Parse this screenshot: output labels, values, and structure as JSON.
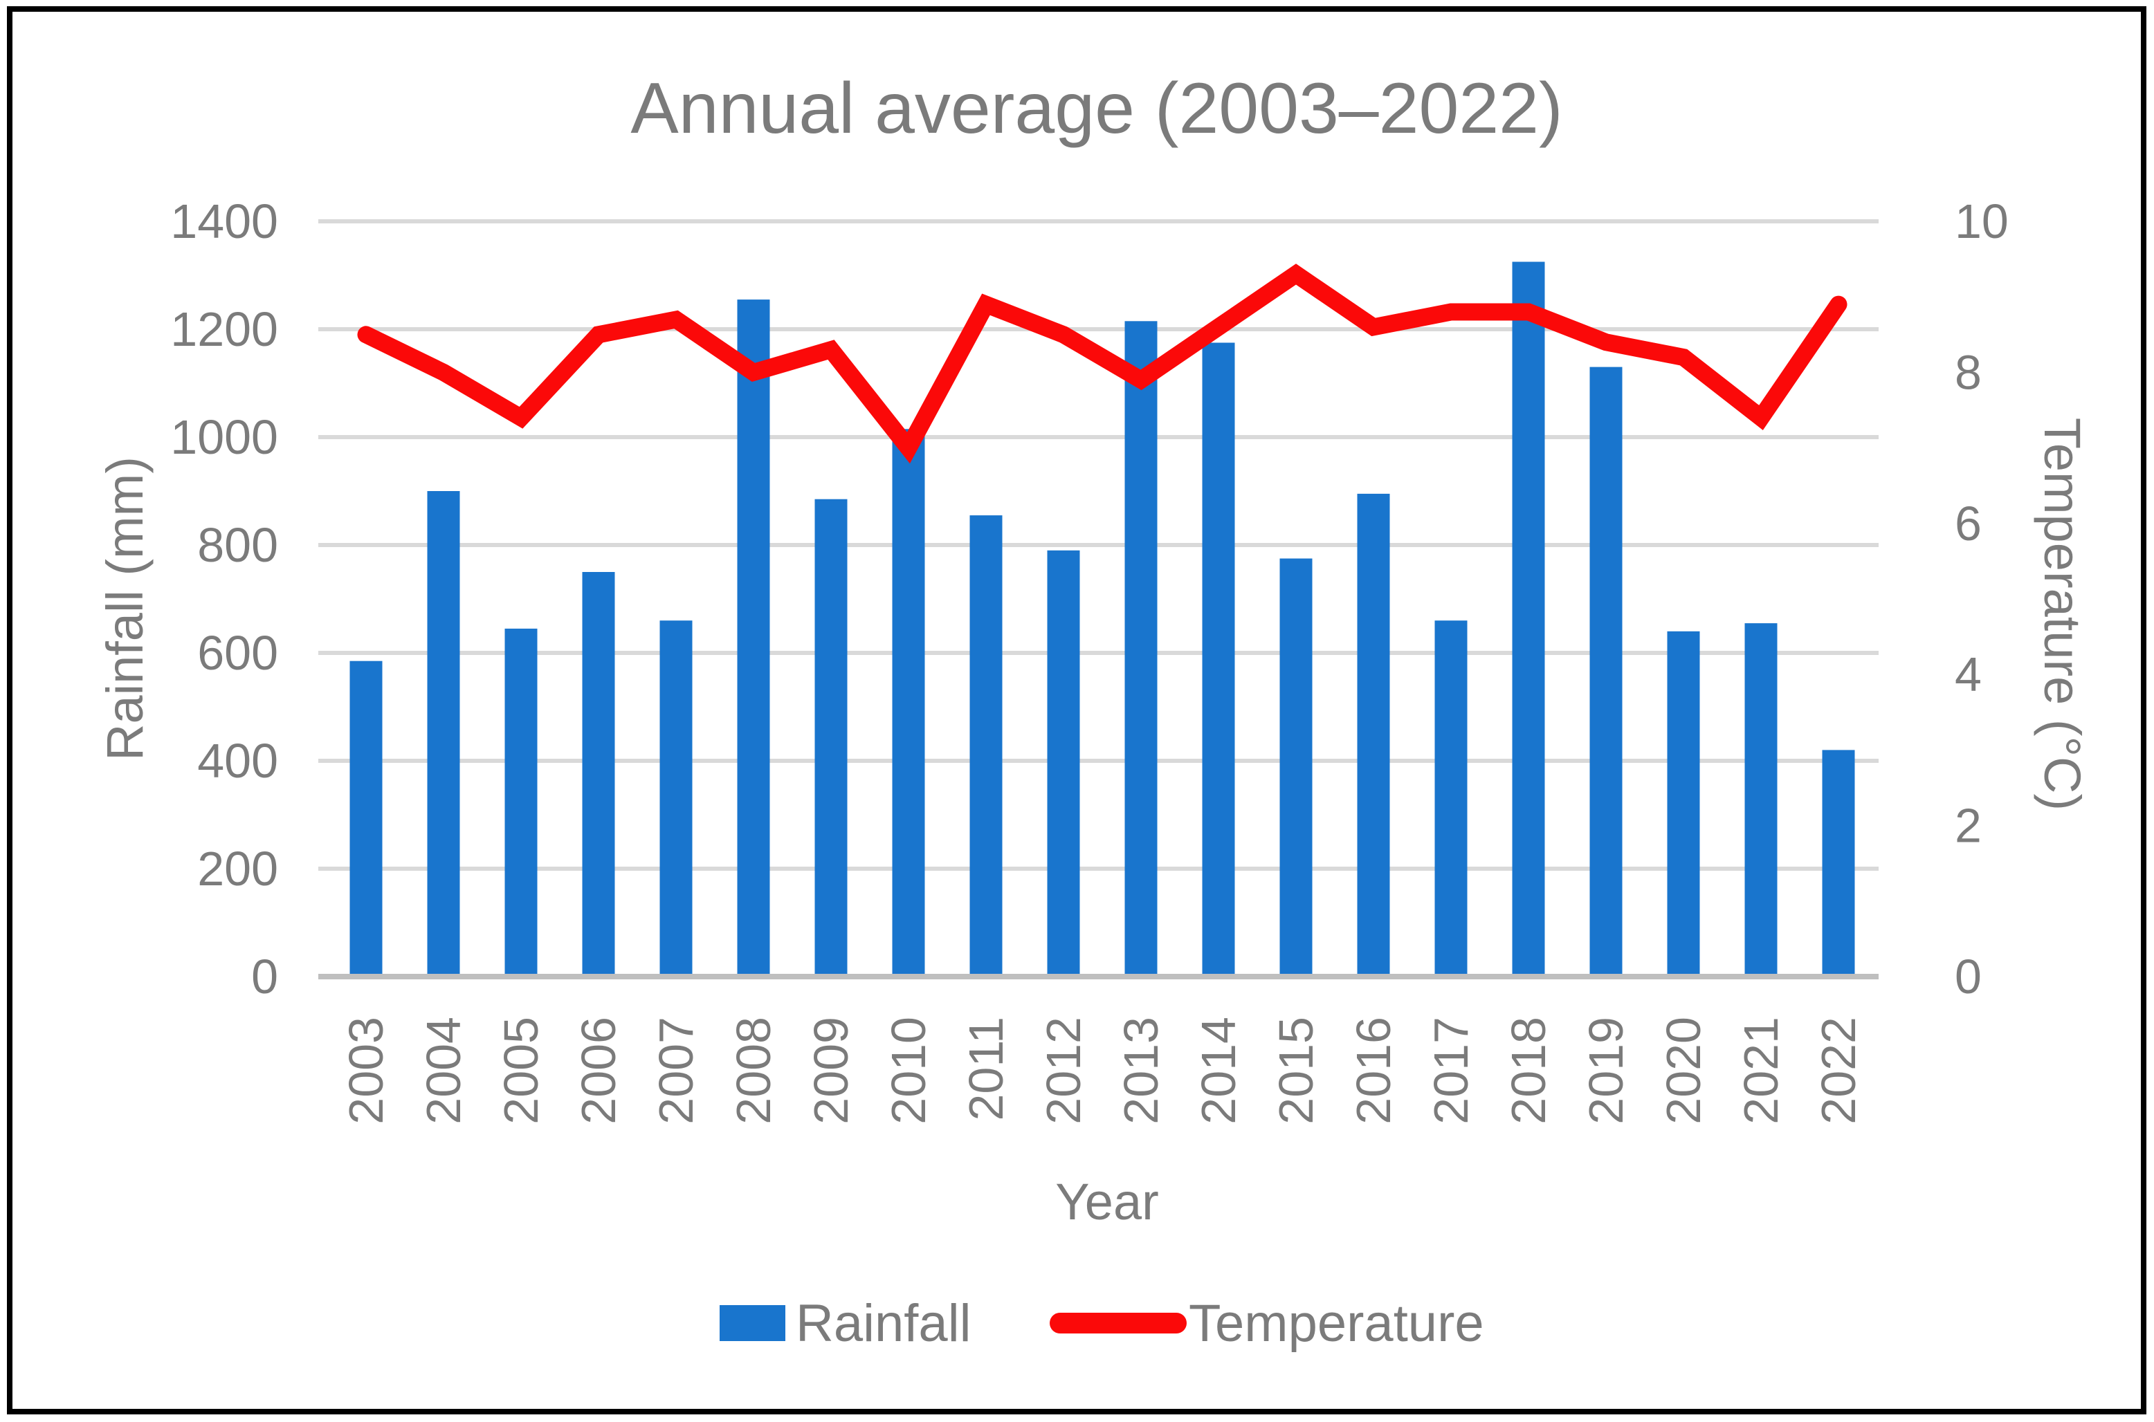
{
  "chart_data": {
    "type": "bar-line-combo",
    "title": "Annual average (2003–2022)",
    "xlabel": "Year",
    "ylabel": "Rainfall (mm)",
    "y2label": "Temperature (°C)",
    "categories": [
      2003,
      2004,
      2005,
      2006,
      2007,
      2008,
      2009,
      2010,
      2011,
      2012,
      2013,
      2014,
      2015,
      2016,
      2017,
      2018,
      2019,
      2020,
      2021,
      2022
    ],
    "series": [
      {
        "name": "Rainfall",
        "type": "bar",
        "axis": "left",
        "color": "#1975CD",
        "values": [
          585,
          900,
          645,
          750,
          660,
          1255,
          885,
          1015,
          855,
          790,
          1215,
          1175,
          775,
          895,
          660,
          1325,
          1130,
          640,
          655,
          420
        ]
      },
      {
        "name": "Temperature",
        "type": "line",
        "axis": "right",
        "color": "#FB0909",
        "values": [
          8.5,
          8.0,
          7.4,
          8.5,
          8.7,
          8.0,
          8.3,
          7.0,
          8.9,
          8.5,
          7.9,
          8.6,
          9.3,
          8.6,
          8.8,
          8.8,
          8.4,
          8.2,
          7.4,
          8.9
        ]
      }
    ],
    "ylim": [
      0,
      1400
    ],
    "y2lim": [
      0,
      10
    ],
    "y_ticks": [
      0,
      200,
      400,
      600,
      800,
      1000,
      1200,
      1400
    ],
    "y2_ticks": [
      0,
      2,
      4,
      6,
      8,
      10
    ],
    "grid": true,
    "legend_position": "bottom",
    "colors": {
      "text": "#7B7B7B",
      "gridline": "#D9D9D9",
      "axis_line": "#BFBFBF",
      "background": "#FFFFFF",
      "border": "#000000"
    }
  }
}
